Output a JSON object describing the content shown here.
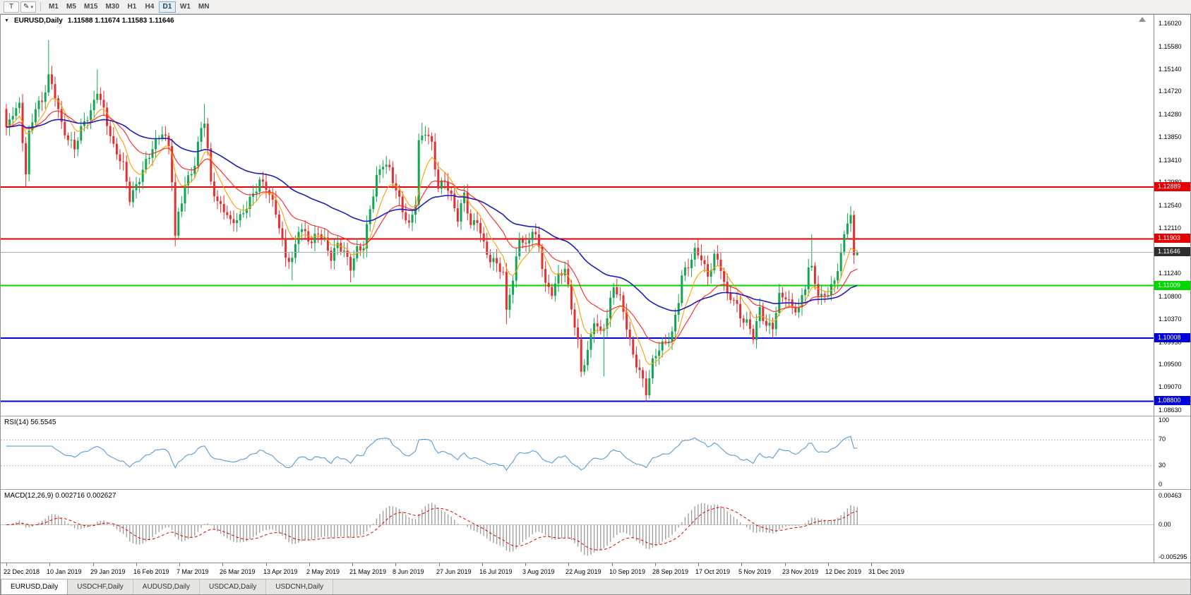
{
  "icons": {
    "pencil": "✎",
    "dropdown_arrow": "▾",
    "collapse_arrow": "▼"
  },
  "toolbar": {
    "cursor_tool_label": "T",
    "timeframes": [
      "M1",
      "M5",
      "M15",
      "M30",
      "H1",
      "H4",
      "D1",
      "W1",
      "MN"
    ],
    "active_timeframe": "D1"
  },
  "chart": {
    "symbol_period": "EURUSD,Daily",
    "ohlc_text": "1.11588 1.11674 1.11583 1.11646",
    "price_axis_ticks": [
      "1.16020",
      "1.15580",
      "1.15140",
      "1.14720",
      "1.14280",
      "1.13850",
      "1.13410",
      "1.12980",
      "1.12540",
      "1.12110",
      "1.11670",
      "1.11240",
      "1.10800",
      "1.10370",
      "1.09930",
      "1.09500",
      "1.09070",
      "1.08630"
    ],
    "levels": [
      {
        "label": "1.12889",
        "value": 1.12889,
        "color": "#e60000",
        "width": 2,
        "kind": "resistance"
      },
      {
        "label": "1.11903",
        "value": 1.11903,
        "color": "#e60000",
        "width": 2,
        "kind": "resistance"
      },
      {
        "label": "1.11646",
        "value": 1.11646,
        "color": "#a8adb3",
        "tag_bg": "#2e2e2e",
        "width": 1,
        "kind": "current-price"
      },
      {
        "label": "1.11009",
        "value": 1.11009,
        "color": "#00d800",
        "width": 2,
        "kind": "support"
      },
      {
        "label": "1.10008",
        "value": 1.10008,
        "color": "#0000d8",
        "width": 2,
        "kind": "support"
      },
      {
        "label": "1.08800",
        "value": 1.088,
        "color": "#0000d8",
        "width": 2,
        "kind": "support"
      }
    ],
    "colors": {
      "bull": "#12a552",
      "bear": "#e03232",
      "background": "#ffffff"
    }
  },
  "rsi": {
    "label": "RSI(14) 56.5545",
    "axis": [
      "100",
      "70",
      "30",
      "0"
    ],
    "level_lines": [
      70,
      30
    ],
    "line_color": "#5b9bd5"
  },
  "macd": {
    "label": "MACD(12,26,9) 0.002716 0.002627",
    "axis": [
      "0.00463",
      "0.00",
      "-0.005295"
    ],
    "histogram_color": "#a0a0a0",
    "signal_color": "#e00000"
  },
  "date_axis": {
    "labels": [
      "22 Dec 2018",
      "10 Jan 2019",
      "29 Jan 2019",
      "16 Feb 2019",
      "7 Mar 2019",
      "26 Mar 2019",
      "13 Apr 2019",
      "2 May 2019",
      "21 May 2019",
      "8 Jun 2019",
      "27 Jun 2019",
      "16 Jul 2019",
      "3 Aug 2019",
      "22 Aug 2019",
      "10 Sep 2019",
      "28 Sep 2019",
      "17 Oct 2019",
      "5 Nov 2019",
      "23 Nov 2019",
      "12 Dec 2019",
      "31 Dec 2019"
    ]
  },
  "tabs": [
    {
      "label": "EURUSD,Daily",
      "active": true
    },
    {
      "label": "USDCHF,Daily",
      "active": false
    },
    {
      "label": "AUDUSD,Daily",
      "active": false
    },
    {
      "label": "USDCAD,Daily",
      "active": false
    },
    {
      "label": "USDCNH,Daily",
      "active": false
    }
  ],
  "chart_data": {
    "type": "candlestick",
    "symbol": "EURUSD",
    "period": "Daily",
    "title": "EURUSD,Daily",
    "num_candles": 263,
    "date_span": [
      "22 Dec 2018",
      "31 Dec 2019"
    ],
    "axis_range": {
      "top": 1.16182,
      "bottom": 1.08521
    },
    "last_candle": {
      "o": 1.11588,
      "h": 1.11674,
      "l": 1.11583,
      "c": 1.11646
    },
    "horizontal_levels": [
      1.12889,
      1.11903,
      1.11646,
      1.11009,
      1.10008,
      1.088
    ],
    "waypoints": [
      [
        0,
        1.1395
      ],
      [
        2,
        1.1432
      ],
      [
        4,
        1.1448
      ],
      [
        6,
        1.1318
      ],
      [
        7,
        1.1392
      ],
      [
        9,
        1.144
      ],
      [
        11,
        1.1448
      ],
      [
        13,
        1.1498
      ],
      [
        15,
        1.1468
      ],
      [
        17,
        1.1412
      ],
      [
        19,
        1.1382
      ],
      [
        21,
        1.1362
      ],
      [
        24,
        1.1412
      ],
      [
        26,
        1.1432
      ],
      [
        28,
        1.1478
      ],
      [
        30,
        1.1438
      ],
      [
        33,
        1.1362
      ],
      [
        36,
        1.1328
      ],
      [
        38,
        1.1268
      ],
      [
        40,
        1.1295
      ],
      [
        43,
        1.1338
      ],
      [
        46,
        1.1372
      ],
      [
        48,
        1.1392
      ],
      [
        50,
        1.1368
      ],
      [
        51,
        1.1308
      ],
      [
        52,
        1.1196
      ],
      [
        53,
        1.1242
      ],
      [
        55,
        1.1292
      ],
      [
        58,
        1.1328
      ],
      [
        60,
        1.1402
      ],
      [
        61,
        1.1415
      ],
      [
        63,
        1.1302
      ],
      [
        65,
        1.1262
      ],
      [
        67,
        1.1248
      ],
      [
        69,
        1.1218
      ],
      [
        72,
        1.1228
      ],
      [
        75,
        1.1268
      ],
      [
        78,
        1.1302
      ],
      [
        80,
        1.1288
      ],
      [
        83,
        1.1238
      ],
      [
        86,
        1.1158
      ],
      [
        88,
        1.1152
      ],
      [
        90,
        1.1212
      ],
      [
        92,
        1.1198
      ],
      [
        94,
        1.1178
      ],
      [
        96,
        1.1202
      ],
      [
        98,
        1.1188
      ],
      [
        100,
        1.1158
      ],
      [
        102,
        1.1182
      ],
      [
        104,
        1.1162
      ],
      [
        106,
        1.1132
      ],
      [
        108,
        1.1168
      ],
      [
        110,
        1.1178
      ],
      [
        112,
        1.1252
      ],
      [
        114,
        1.1308
      ],
      [
        116,
        1.1332
      ],
      [
        118,
        1.1318
      ],
      [
        120,
        1.1282
      ],
      [
        122,
        1.1248
      ],
      [
        124,
        1.1218
      ],
      [
        126,
        1.1262
      ],
      [
        127,
        1.1372
      ],
      [
        129,
        1.1392
      ],
      [
        131,
        1.1368
      ],
      [
        133,
        1.1288
      ],
      [
        135,
        1.1308
      ],
      [
        137,
        1.1272
      ],
      [
        139,
        1.1228
      ],
      [
        141,
        1.1272
      ],
      [
        143,
        1.1212
      ],
      [
        145,
        1.1228
      ],
      [
        147,
        1.1182
      ],
      [
        149,
        1.1152
      ],
      [
        151,
        1.1142
      ],
      [
        153,
        1.1118
      ],
      [
        154,
        1.1048
      ],
      [
        155,
        1.1088
      ],
      [
        156,
        1.1108
      ],
      [
        158,
        1.1198
      ],
      [
        160,
        1.1178
      ],
      [
        162,
        1.1208
      ],
      [
        164,
        1.1172
      ],
      [
        166,
        1.1098
      ],
      [
        168,
        1.1088
      ],
      [
        170,
        1.1122
      ],
      [
        172,
        1.1138
      ],
      [
        174,
        1.1058
      ],
      [
        176,
        1.0988
      ],
      [
        177,
        1.0932
      ],
      [
        179,
        1.0972
      ],
      [
        181,
        1.1038
      ],
      [
        183,
        1.1012
      ],
      [
        185,
        1.1042
      ],
      [
        187,
        1.1098
      ],
      [
        189,
        1.1072
      ],
      [
        191,
        1.1022
      ],
      [
        193,
        1.0968
      ],
      [
        195,
        1.0942
      ],
      [
        197,
        1.0898
      ],
      [
        199,
        1.0952
      ],
      [
        201,
        1.0978
      ],
      [
        203,
        1.0992
      ],
      [
        205,
        1.1012
      ],
      [
        207,
        1.1078
      ],
      [
        208,
        1.1122
      ],
      [
        210,
        1.1138
      ],
      [
        212,
        1.1162
      ],
      [
        214,
        1.1152
      ],
      [
        216,
        1.1118
      ],
      [
        218,
        1.1162
      ],
      [
        220,
        1.1138
      ],
      [
        222,
        1.1078
      ],
      [
        224,
        1.1072
      ],
      [
        226,
        1.1038
      ],
      [
        228,
        1.1032
      ],
      [
        230,
        1.1008
      ],
      [
        232,
        1.1058
      ],
      [
        234,
        1.1022
      ],
      [
        236,
        1.1018
      ],
      [
        238,
        1.1078
      ],
      [
        240,
        1.1082
      ],
      [
        242,
        1.1062
      ],
      [
        244,
        1.1058
      ],
      [
        246,
        1.1098
      ],
      [
        247,
        1.1132
      ],
      [
        248,
        1.1128
      ],
      [
        250,
        1.1082
      ],
      [
        251,
        1.1078
      ],
      [
        253,
        1.1092
      ],
      [
        255,
        1.1112
      ],
      [
        257,
        1.1162
      ],
      [
        259,
        1.1222
      ],
      [
        260,
        1.1232
      ],
      [
        261,
        1.1159
      ],
      [
        262,
        1.11646
      ]
    ],
    "spikes": [
      {
        "day": 6,
        "low": 1.1289
      },
      {
        "day": 13,
        "high": 1.157
      },
      {
        "day": 28,
        "high": 1.1514
      },
      {
        "day": 52,
        "low": 1.1176
      },
      {
        "day": 61,
        "high": 1.1448
      },
      {
        "day": 88,
        "low": 1.1111
      },
      {
        "day": 106,
        "low": 1.1107
      },
      {
        "day": 128,
        "high": 1.1412
      },
      {
        "day": 154,
        "low": 1.1027
      },
      {
        "day": 177,
        "low": 1.0926
      },
      {
        "day": 184,
        "low": 1.0927
      },
      {
        "day": 197,
        "low": 1.0879
      },
      {
        "day": 214,
        "high": 1.118
      },
      {
        "day": 230,
        "low": 1.0989
      },
      {
        "day": 248,
        "high": 1.1199
      },
      {
        "day": 259,
        "high": 1.1239
      }
    ],
    "indicators": [
      {
        "type": "ema",
        "name": "fast-ma",
        "period": 8,
        "color": "#ff9d00",
        "width": 1.1
      },
      {
        "type": "ema",
        "name": "mid-ma",
        "period": 21,
        "color": "#ff2222",
        "width": 1.1
      },
      {
        "type": "ema",
        "name": "slow-ma",
        "period": 55,
        "color": "#1d1db8",
        "width": 1.6
      },
      {
        "type": "rsi",
        "period": 14,
        "current": 56.5545
      },
      {
        "type": "macd",
        "fast": 12,
        "slow": 26,
        "signal": 9,
        "macd_current": 0.002716,
        "signal_current": 0.002627
      }
    ]
  }
}
